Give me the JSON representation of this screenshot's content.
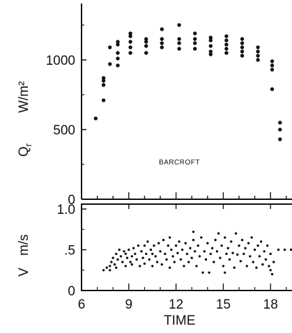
{
  "chart_data": [
    {
      "type": "scatter",
      "title": "",
      "ylabel_main": "Q",
      "ylabel_sub": "r",
      "yunit": "W/m²",
      "xlabel": "",
      "annotation": "BARCROFT",
      "xlim": [
        6,
        19.5
      ],
      "ylim": [
        0,
        1400
      ],
      "yticks": [
        {
          "v": 0,
          "label": "0"
        },
        {
          "v": 500,
          "label": "500"
        },
        {
          "v": 1000,
          "label": "1000"
        }
      ],
      "xticks": [
        6,
        7,
        8,
        9,
        10,
        11,
        12,
        13,
        14,
        15,
        16,
        17,
        18,
        19
      ],
      "points": [
        [
          6.9,
          580
        ],
        [
          7.4,
          710
        ],
        [
          7.4,
          820
        ],
        [
          7.4,
          850
        ],
        [
          7.4,
          870
        ],
        [
          7.8,
          970
        ],
        [
          7.8,
          1090
        ],
        [
          8.3,
          960
        ],
        [
          8.3,
          1010
        ],
        [
          8.3,
          1050
        ],
        [
          8.3,
          1110
        ],
        [
          8.3,
          1130
        ],
        [
          9.1,
          1050
        ],
        [
          9.1,
          1090
        ],
        [
          9.1,
          1130
        ],
        [
          9.1,
          1170
        ],
        [
          9.1,
          1190
        ],
        [
          10.1,
          1050
        ],
        [
          10.1,
          1100
        ],
        [
          10.1,
          1130
        ],
        [
          10.1,
          1150
        ],
        [
          11.1,
          1090
        ],
        [
          11.1,
          1120
        ],
        [
          11.1,
          1150
        ],
        [
          11.1,
          1220
        ],
        [
          12.2,
          1080
        ],
        [
          12.2,
          1120
        ],
        [
          12.2,
          1150
        ],
        [
          12.2,
          1250
        ],
        [
          13.2,
          1080
        ],
        [
          13.2,
          1120
        ],
        [
          13.2,
          1150
        ],
        [
          13.2,
          1190
        ],
        [
          14.2,
          1040
        ],
        [
          14.2,
          1060
        ],
        [
          14.2,
          1100
        ],
        [
          14.2,
          1140
        ],
        [
          14.2,
          1160
        ],
        [
          15.2,
          1050
        ],
        [
          15.2,
          1080
        ],
        [
          15.2,
          1110
        ],
        [
          15.2,
          1140
        ],
        [
          15.2,
          1170
        ],
        [
          16.2,
          1030
        ],
        [
          16.2,
          1060
        ],
        [
          16.2,
          1090
        ],
        [
          16.2,
          1120
        ],
        [
          16.2,
          1150
        ],
        [
          17.2,
          1000
        ],
        [
          17.2,
          1030
        ],
        [
          17.2,
          1060
        ],
        [
          17.2,
          1090
        ],
        [
          18.1,
          790
        ],
        [
          18.1,
          930
        ],
        [
          18.1,
          960
        ],
        [
          18.1,
          990
        ],
        [
          18.6,
          430
        ],
        [
          18.6,
          500
        ],
        [
          18.6,
          550
        ]
      ]
    },
    {
      "type": "scatter",
      "title": "",
      "ylabel_main": "V",
      "yunit": "m/s",
      "xlabel": "TIME",
      "xlim": [
        6,
        19.5
      ],
      "ylim": [
        0,
        1.0
      ],
      "yticks": [
        {
          "v": 0,
          "label": "0"
        },
        {
          "v": 0.5,
          "label": ".5"
        },
        {
          "v": 1.0,
          "label": "1.0"
        }
      ],
      "xticks": [
        {
          "v": 6,
          "label": "6"
        },
        {
          "v": 9,
          "label": "9"
        },
        {
          "v": 12,
          "label": "12"
        },
        {
          "v": 15,
          "label": "15"
        },
        {
          "v": 18,
          "label": "18"
        }
      ],
      "xticks_minor": [
        7,
        8,
        10,
        11,
        13,
        14,
        16,
        17,
        19
      ],
      "points": [
        [
          7.4,
          0.25
        ],
        [
          7.6,
          0.28
        ],
        [
          7.8,
          0.3
        ],
        [
          7.9,
          0.35
        ],
        [
          7.8,
          0.25
        ],
        [
          8.0,
          0.4
        ],
        [
          8.1,
          0.32
        ],
        [
          8.2,
          0.45
        ],
        [
          8.2,
          0.28
        ],
        [
          8.3,
          0.38
        ],
        [
          8.4,
          0.5
        ],
        [
          8.5,
          0.42
        ],
        [
          8.6,
          0.35
        ],
        [
          8.7,
          0.48
        ],
        [
          8.8,
          0.3
        ],
        [
          8.8,
          0.45
        ],
        [
          8.9,
          0.4
        ],
        [
          9.0,
          0.5
        ],
        [
          9.1,
          0.35
        ],
        [
          9.2,
          0.42
        ],
        [
          9.2,
          0.32
        ],
        [
          9.3,
          0.52
        ],
        [
          9.4,
          0.45
        ],
        [
          9.5,
          0.38
        ],
        [
          9.6,
          0.55
        ],
        [
          9.7,
          0.3
        ],
        [
          9.8,
          0.48
        ],
        [
          9.9,
          0.4
        ],
        [
          10.0,
          0.55
        ],
        [
          10.0,
          0.33
        ],
        [
          10.1,
          0.45
        ],
        [
          10.2,
          0.6
        ],
        [
          10.3,
          0.38
        ],
        [
          10.4,
          0.5
        ],
        [
          10.5,
          0.3
        ],
        [
          10.5,
          0.45
        ],
        [
          10.6,
          0.55
        ],
        [
          10.7,
          0.42
        ],
        [
          10.8,
          0.35
        ],
        [
          10.9,
          0.58
        ],
        [
          11.0,
          0.48
        ],
        [
          11.1,
          0.32
        ],
        [
          11.2,
          0.62
        ],
        [
          11.3,
          0.45
        ],
        [
          11.4,
          0.38
        ],
        [
          11.5,
          0.55
        ],
        [
          11.6,
          0.28
        ],
        [
          11.6,
          0.65
        ],
        [
          11.7,
          0.5
        ],
        [
          11.8,
          0.42
        ],
        [
          11.9,
          0.35
        ],
        [
          12.0,
          0.55
        ],
        [
          12.1,
          0.46
        ],
        [
          12.2,
          0.6
        ],
        [
          12.3,
          0.38
        ],
        [
          12.4,
          0.5
        ],
        [
          12.5,
          0.3
        ],
        [
          12.6,
          0.58
        ],
        [
          12.7,
          0.45
        ],
        [
          12.8,
          0.35
        ],
        [
          12.9,
          0.52
        ],
        [
          13.0,
          0.4
        ],
        [
          13.1,
          0.62
        ],
        [
          13.1,
          0.72
        ],
        [
          13.2,
          0.48
        ],
        [
          13.3,
          0.3
        ],
        [
          13.4,
          0.55
        ],
        [
          13.5,
          0.42
        ],
        [
          13.6,
          0.65
        ],
        [
          13.7,
          0.22
        ],
        [
          13.8,
          0.48
        ],
        [
          13.9,
          0.38
        ],
        [
          14.0,
          0.58
        ],
        [
          14.1,
          0.22
        ],
        [
          14.2,
          0.45
        ],
        [
          14.3,
          0.52
        ],
        [
          14.4,
          0.35
        ],
        [
          14.5,
          0.62
        ],
        [
          14.6,
          0.48
        ],
        [
          14.7,
          0.7
        ],
        [
          14.8,
          0.4
        ],
        [
          14.9,
          0.55
        ],
        [
          15.0,
          0.3
        ],
        [
          15.1,
          0.65
        ],
        [
          15.1,
          0.22
        ],
        [
          15.2,
          0.45
        ],
        [
          15.3,
          0.52
        ],
        [
          15.4,
          0.38
        ],
        [
          15.5,
          0.6
        ],
        [
          15.6,
          0.46
        ],
        [
          15.7,
          0.28
        ],
        [
          15.8,
          0.7
        ],
        [
          15.9,
          0.44
        ],
        [
          16.0,
          0.55
        ],
        [
          16.1,
          0.36
        ],
        [
          16.2,
          0.62
        ],
        [
          16.3,
          0.45
        ],
        [
          16.4,
          0.52
        ],
        [
          16.5,
          0.3
        ],
        [
          16.6,
          0.58
        ],
        [
          16.7,
          0.42
        ],
        [
          16.8,
          0.65
        ],
        [
          16.9,
          0.35
        ],
        [
          17.0,
          0.5
        ],
        [
          17.1,
          0.28
        ],
        [
          17.2,
          0.55
        ],
        [
          17.3,
          0.42
        ],
        [
          17.4,
          0.6
        ],
        [
          17.5,
          0.32
        ],
        [
          17.6,
          0.48
        ],
        [
          17.7,
          0.38
        ],
        [
          17.8,
          0.55
        ],
        [
          17.9,
          0.3
        ],
        [
          18.0,
          0.45
        ],
        [
          18.0,
          0.25
        ],
        [
          18.1,
          0.2
        ],
        [
          18.2,
          0.35
        ],
        [
          18.5,
          0.5
        ],
        [
          18.9,
          0.5
        ],
        [
          19.3,
          0.5
        ]
      ]
    }
  ]
}
